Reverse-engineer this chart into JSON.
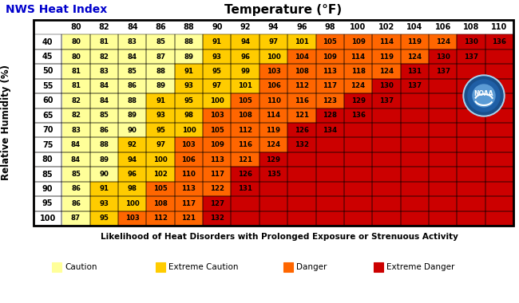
{
  "title_left": "NWS Heat Index",
  "title_center": "Temperature (°F)",
  "ylabel": "Relative Humidity (%)",
  "xlabel": "Likelihood of Heat Disorders with Prolonged Exposure or Strenuous Activity",
  "temp_labels": [
    80,
    82,
    84,
    86,
    88,
    90,
    92,
    94,
    96,
    98,
    100,
    102,
    104,
    106,
    108,
    110
  ],
  "humidity_labels": [
    40,
    45,
    50,
    55,
    60,
    65,
    70,
    75,
    80,
    85,
    90,
    95,
    100
  ],
  "table": [
    [
      80,
      81,
      83,
      85,
      88,
      91,
      94,
      97,
      101,
      105,
      109,
      114,
      119,
      124,
      130,
      136
    ],
    [
      80,
      82,
      84,
      87,
      89,
      93,
      96,
      100,
      104,
      109,
      114,
      119,
      124,
      130,
      137,
      null
    ],
    [
      81,
      83,
      85,
      88,
      91,
      95,
      99,
      103,
      108,
      113,
      118,
      124,
      131,
      137,
      null,
      null
    ],
    [
      81,
      84,
      86,
      89,
      93,
      97,
      101,
      106,
      112,
      117,
      124,
      130,
      137,
      null,
      null,
      null
    ],
    [
      82,
      84,
      88,
      91,
      95,
      100,
      105,
      110,
      116,
      123,
      129,
      137,
      null,
      null,
      null,
      null
    ],
    [
      82,
      85,
      89,
      93,
      98,
      103,
      108,
      114,
      121,
      128,
      136,
      null,
      null,
      null,
      null,
      null
    ],
    [
      83,
      86,
      90,
      95,
      100,
      105,
      112,
      119,
      126,
      134,
      null,
      null,
      null,
      null,
      null,
      null
    ],
    [
      84,
      88,
      92,
      97,
      103,
      109,
      116,
      124,
      132,
      null,
      null,
      null,
      null,
      null,
      null,
      null
    ],
    [
      84,
      89,
      94,
      100,
      106,
      113,
      121,
      129,
      null,
      null,
      null,
      null,
      null,
      null,
      null,
      null
    ],
    [
      85,
      90,
      96,
      102,
      110,
      117,
      126,
      135,
      null,
      null,
      null,
      null,
      null,
      null,
      null,
      null
    ],
    [
      86,
      91,
      98,
      105,
      113,
      122,
      131,
      null,
      null,
      null,
      null,
      null,
      null,
      null,
      null,
      null
    ],
    [
      86,
      93,
      100,
      108,
      117,
      127,
      null,
      null,
      null,
      null,
      null,
      null,
      null,
      null,
      null,
      null
    ],
    [
      87,
      95,
      103,
      112,
      121,
      132,
      null,
      null,
      null,
      null,
      null,
      null,
      null,
      null,
      null,
      null
    ]
  ],
  "caution_color": "#FFFF99",
  "extreme_caution_color": "#FFCC00",
  "danger_color": "#FF6600",
  "extreme_danger_color": "#CC0000",
  "background_color": "#CC0000",
  "border_color": "#000000",
  "title_color_left": "#0000CC",
  "title_color_center": "#000000",
  "legend_items": [
    {
      "label": "Caution",
      "color": "#FFFF99"
    },
    {
      "label": "Extreme Caution",
      "color": "#FFCC00"
    },
    {
      "label": "Danger",
      "color": "#FF6600"
    },
    {
      "label": "Extreme Danger",
      "color": "#CC0000"
    }
  ],
  "noaa_outer_color": "#5B9BD5",
  "noaa_inner_color": "#1F5FA6",
  "noaa_ring_color": "#A8D4F0"
}
